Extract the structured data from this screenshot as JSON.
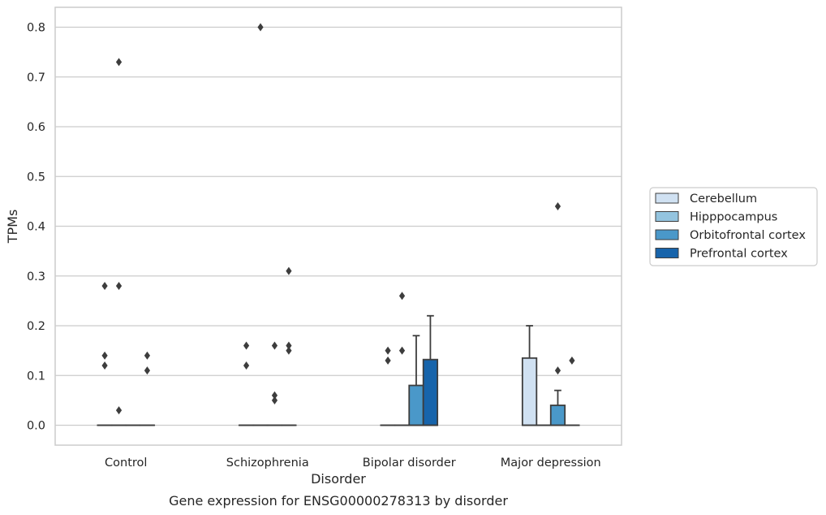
{
  "chart_data": {
    "type": "box",
    "title": "",
    "caption": "Gene expression for ENSG00000278313 by disorder",
    "xlabel": "Disorder",
    "ylabel": "TPMs",
    "categories": [
      "Control",
      "Schizophrenia",
      "Bipolar disorder",
      "Major depression"
    ],
    "yticks": [
      "0.0",
      "0.1",
      "0.2",
      "0.3",
      "0.4",
      "0.5",
      "0.6",
      "0.7",
      "0.8"
    ],
    "ylim": [
      -0.04,
      0.84
    ],
    "grid": "horizontal",
    "legend_position": "right",
    "series": [
      {
        "name": "Cerebellum",
        "color": "#d0e1f2",
        "boxes": [
          {
            "q1": 0,
            "median": 0,
            "q3": 0,
            "whisker_low": 0,
            "whisker_high": 0,
            "outliers": [
              0.28,
              0.14,
              0.12
            ]
          },
          {
            "q1": 0,
            "median": 0,
            "q3": 0,
            "whisker_low": 0,
            "whisker_high": 0,
            "outliers": [
              0.16,
              0.12
            ]
          },
          {
            "q1": 0,
            "median": 0,
            "q3": 0,
            "whisker_low": 0,
            "whisker_high": 0,
            "outliers": [
              0.15,
              0.13
            ]
          },
          {
            "q1": 0,
            "median": 0,
            "q3": 0.135,
            "whisker_low": 0,
            "whisker_high": 0.2,
            "outliers": []
          }
        ]
      },
      {
        "name": "Hipppocampus",
        "color": "#94c4df",
        "boxes": [
          {
            "q1": 0,
            "median": 0,
            "q3": 0,
            "whisker_low": 0,
            "whisker_high": 0,
            "outliers": [
              0.73,
              0.28,
              0.03
            ]
          },
          {
            "q1": 0,
            "median": 0,
            "q3": 0,
            "whisker_low": 0,
            "whisker_high": 0,
            "outliers": [
              0.8
            ]
          },
          {
            "q1": 0,
            "median": 0,
            "q3": 0,
            "whisker_low": 0,
            "whisker_high": 0,
            "outliers": [
              0.26,
              0.15
            ]
          },
          {
            "q1": 0,
            "median": 0,
            "q3": 0,
            "whisker_low": 0,
            "whisker_high": 0,
            "outliers": []
          }
        ]
      },
      {
        "name": "Orbitofrontal cortex",
        "color": "#4a98c9",
        "boxes": [
          {
            "q1": 0,
            "median": 0,
            "q3": 0,
            "whisker_low": 0,
            "whisker_high": 0,
            "outliers": []
          },
          {
            "q1": 0,
            "median": 0,
            "q3": 0,
            "whisker_low": 0,
            "whisker_high": 0,
            "outliers": [
              0.16,
              0.06,
              0.05
            ]
          },
          {
            "q1": 0,
            "median": 0,
            "q3": 0.08,
            "whisker_low": 0,
            "whisker_high": 0.18,
            "outliers": []
          },
          {
            "q1": 0,
            "median": 0,
            "q3": 0.04,
            "whisker_low": 0,
            "whisker_high": 0.07,
            "outliers": [
              0.44,
              0.11
            ]
          }
        ]
      },
      {
        "name": "Prefrontal cortex",
        "color": "#1764ab",
        "boxes": [
          {
            "q1": 0,
            "median": 0,
            "q3": 0,
            "whisker_low": 0,
            "whisker_high": 0,
            "outliers": [
              0.14,
              0.11
            ]
          },
          {
            "q1": 0,
            "median": 0,
            "q3": 0,
            "whisker_low": 0,
            "whisker_high": 0,
            "outliers": [
              0.31,
              0.16,
              0.15
            ]
          },
          {
            "q1": 0,
            "median": 0,
            "q3": 0.132,
            "whisker_low": 0,
            "whisker_high": 0.22,
            "outliers": []
          },
          {
            "q1": 0,
            "median": 0,
            "q3": 0,
            "whisker_low": 0,
            "whisker_high": 0,
            "outliers": [
              0.13
            ]
          }
        ]
      }
    ]
  }
}
